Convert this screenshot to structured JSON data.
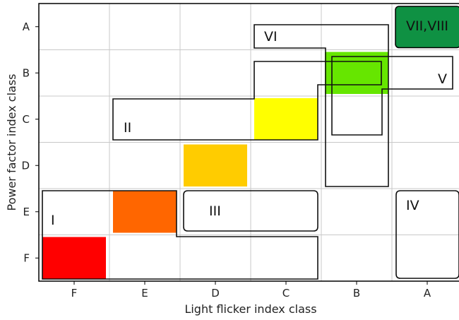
{
  "chart_data": {
    "type": "heatmap",
    "xlabel": "Light flicker index class",
    "ylabel": "Power factor index class",
    "x_categories": [
      "F",
      "E",
      "D",
      "C",
      "B",
      "A"
    ],
    "y_categories": [
      "A",
      "B",
      "C",
      "D",
      "E",
      "F"
    ],
    "grid": true,
    "cells": [
      {
        "x": "F",
        "y": "F",
        "color": "#ff0000"
      },
      {
        "x": "E",
        "y": "E",
        "color": "#ff6600"
      },
      {
        "x": "D",
        "y": "D",
        "color": "#ffcc00"
      },
      {
        "x": "C",
        "y": "C",
        "color": "#ffff00"
      },
      {
        "x": "B",
        "y": "B",
        "color": "#66e600"
      },
      {
        "x": "A",
        "y": "A",
        "color": "#0f9143"
      }
    ],
    "regions": [
      {
        "label": "I",
        "cells": [
          [
            "F",
            "F"
          ],
          [
            "F",
            "E"
          ],
          [
            "E",
            "E"
          ]
        ]
      },
      {
        "label": "II",
        "cells": [
          [
            "E",
            "C"
          ],
          [
            "D",
            "C"
          ],
          [
            "C",
            "C"
          ]
        ]
      },
      {
        "label": "III",
        "cells": [
          [
            "D",
            "E"
          ],
          [
            "C",
            "E"
          ],
          [
            "D",
            "F"
          ],
          [
            "C",
            "F"
          ]
        ]
      },
      {
        "label": "IV",
        "cells": [
          [
            "A",
            "E"
          ],
          [
            "A",
            "F"
          ]
        ]
      },
      {
        "label": "V",
        "cells": [
          [
            "C",
            "B"
          ],
          [
            "B",
            "B"
          ],
          [
            "A",
            "B"
          ],
          [
            "B",
            "C"
          ],
          [
            "B",
            "D"
          ]
        ]
      },
      {
        "label": "VI",
        "cells": [
          [
            "C",
            "A"
          ],
          [
            "B",
            "A"
          ],
          [
            "B",
            "B"
          ],
          [
            "B",
            "C"
          ]
        ]
      },
      {
        "label": "VII,VIII",
        "cells": [
          [
            "A",
            "A"
          ]
        ]
      }
    ]
  }
}
